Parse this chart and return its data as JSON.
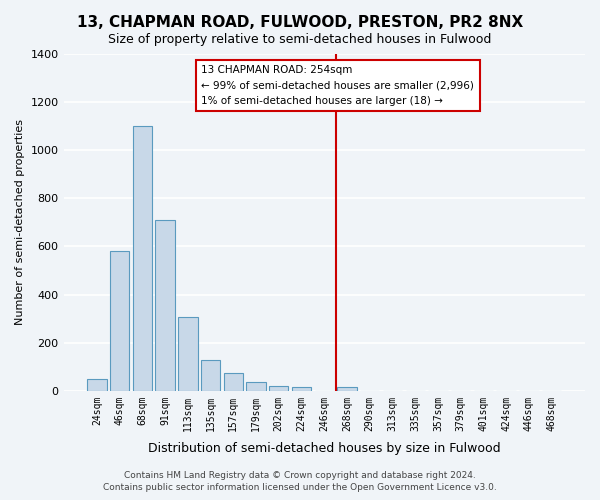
{
  "title": "13, CHAPMAN ROAD, FULWOOD, PRESTON, PR2 8NX",
  "subtitle": "Size of property relative to semi-detached houses in Fulwood",
  "xlabel": "Distribution of semi-detached houses by size in Fulwood",
  "ylabel": "Number of semi-detached properties",
  "bin_labels": [
    "24sqm",
    "46sqm",
    "68sqm",
    "91sqm",
    "113sqm",
    "135sqm",
    "157sqm",
    "179sqm",
    "202sqm",
    "224sqm",
    "246sqm",
    "268sqm",
    "290sqm",
    "313sqm",
    "335sqm",
    "357sqm",
    "379sqm",
    "401sqm",
    "424sqm",
    "446sqm",
    "468sqm"
  ],
  "bar_heights": [
    50,
    580,
    1100,
    710,
    305,
    130,
    75,
    35,
    20,
    15,
    0,
    15,
    0,
    0,
    0,
    0,
    0,
    0,
    0,
    0,
    0
  ],
  "bar_color": "#c8d8e8",
  "bar_edge_color": "#5a9abf",
  "property_line_x": 10.5,
  "property_line_color": "#cc0000",
  "ylim": [
    0,
    1400
  ],
  "yticks": [
    0,
    200,
    400,
    600,
    800,
    1000,
    1200,
    1400
  ],
  "annotation_title": "13 CHAPMAN ROAD: 254sqm",
  "annotation_line1": "← 99% of semi-detached houses are smaller (2,996)",
  "annotation_line2": "1% of semi-detached houses are larger (18) →",
  "footer1": "Contains HM Land Registry data © Crown copyright and database right 2024.",
  "footer2": "Contains public sector information licensed under the Open Government Licence v3.0.",
  "bg_color": "#f0f4f8",
  "grid_color": "#ffffff"
}
